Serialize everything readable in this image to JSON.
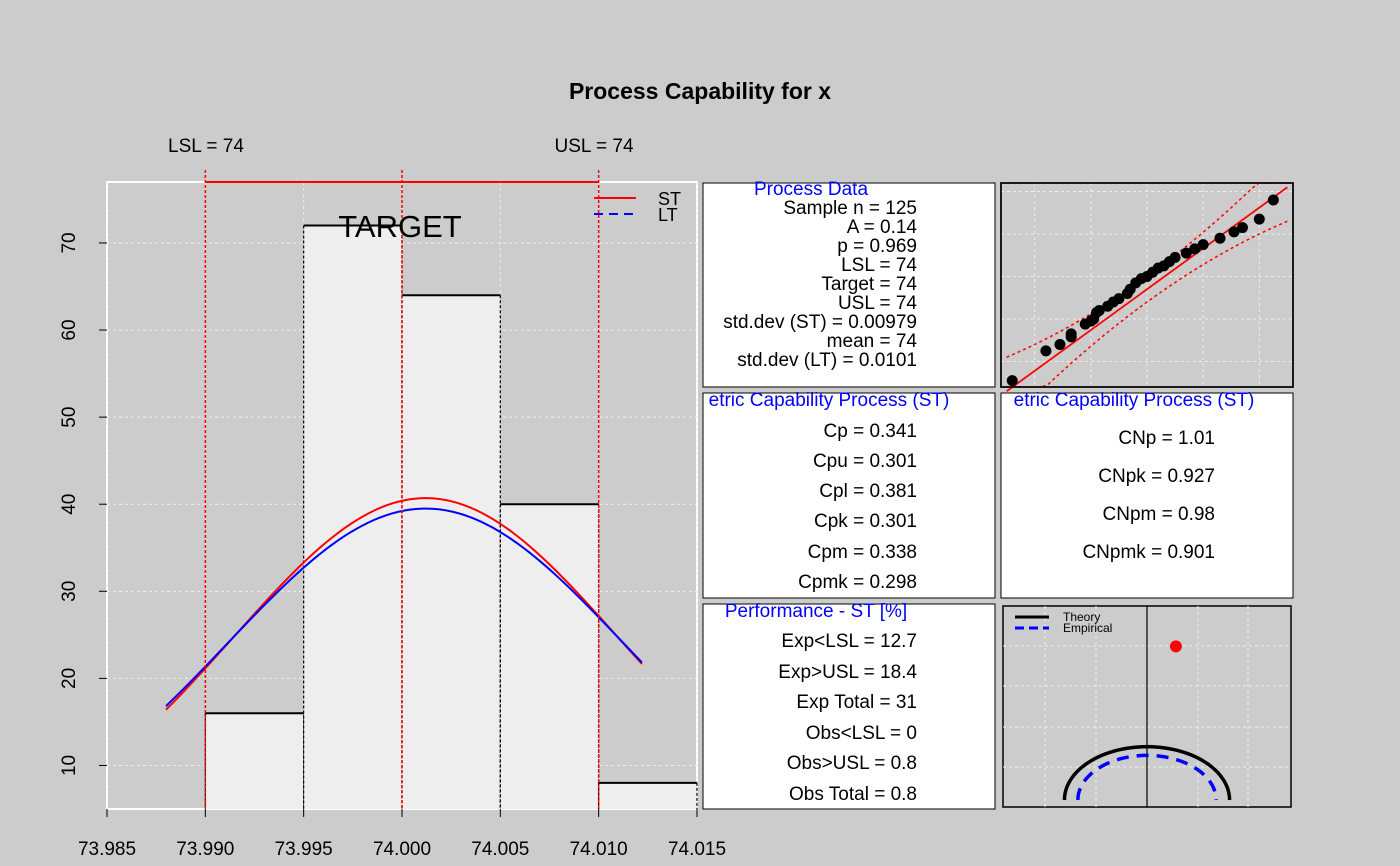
{
  "title": "Process Capability for x",
  "colors": {
    "background": "#cccccc",
    "panel": "#ffffff",
    "bar_fill": "#eeeeee",
    "grid": "#eeeeee",
    "spec": "#ff0000",
    "st_curve": "#ff0000",
    "lt_curve": "#0000ff",
    "heading": "#0000ff"
  },
  "histogram": {
    "lsl_label": "LSL = 74",
    "usl_label": "USL = 74",
    "target_label": "TARGET",
    "legend": {
      "st": "ST",
      "lt": "LT"
    }
  },
  "chart_data": [
    {
      "type": "bar",
      "title": "Process Capability for x",
      "xlim": [
        73.985,
        74.015
      ],
      "ylim": [
        5,
        77
      ],
      "x_ticks": [
        "73.985",
        "73.990",
        "73.995",
        "74.000",
        "74.005",
        "74.010",
        "74.015"
      ],
      "y_ticks": [
        "10",
        "20",
        "30",
        "40",
        "50",
        "60",
        "70"
      ],
      "bins": [
        {
          "from": 73.99,
          "to": 73.995,
          "count": 16
        },
        {
          "from": 73.995,
          "to": 74.0,
          "count": 72
        },
        {
          "from": 74.0,
          "to": 74.005,
          "count": 64
        },
        {
          "from": 74.005,
          "to": 74.01,
          "count": 40
        },
        {
          "from": 74.01,
          "to": 74.015,
          "count": 8
        }
      ],
      "spec_limits": {
        "lsl": 73.99,
        "target": 74.0,
        "usl": 74.01
      },
      "series": [
        {
          "name": "ST",
          "type": "line",
          "mean": 74.0012,
          "sd": 0.00979,
          "peak": 40.7,
          "x_range": [
            73.988,
            74.0122
          ]
        },
        {
          "name": "LT",
          "type": "line",
          "mean": 74.0012,
          "sd": 0.0101,
          "peak": 39.5,
          "x_range": [
            73.988,
            74.0122
          ]
        }
      ],
      "legend": "top-right",
      "grid": true
    },
    {
      "type": "scatter",
      "grid": true,
      "points": [
        [
          -2.4,
          -2.45
        ],
        [
          -1.8,
          -1.75
        ],
        [
          -1.55,
          -1.6
        ],
        [
          -1.35,
          -1.42
        ],
        [
          -1.35,
          -1.35
        ],
        [
          -1.1,
          -1.12
        ],
        [
          -1.0,
          -1.05
        ],
        [
          -0.95,
          -1.0
        ],
        [
          -0.9,
          -0.85
        ],
        [
          -0.85,
          -0.8
        ],
        [
          -0.7,
          -0.7
        ],
        [
          -0.6,
          -0.6
        ],
        [
          -0.5,
          -0.52
        ],
        [
          -0.35,
          -0.4
        ],
        [
          -0.3,
          -0.3
        ],
        [
          -0.2,
          -0.15
        ],
        [
          -0.1,
          -0.05
        ],
        [
          0.0,
          0.0
        ],
        [
          0.1,
          0.1
        ],
        [
          0.2,
          0.2
        ],
        [
          0.3,
          0.25
        ],
        [
          0.4,
          0.35
        ],
        [
          0.5,
          0.45
        ],
        [
          0.7,
          0.55
        ],
        [
          0.85,
          0.65
        ],
        [
          1.0,
          0.75
        ],
        [
          1.3,
          0.9
        ],
        [
          1.55,
          1.05
        ],
        [
          1.7,
          1.15
        ],
        [
          2.0,
          1.35
        ],
        [
          2.25,
          1.8
        ]
      ],
      "reference_line": [
        [
          -2.5,
          -2.7
        ],
        [
          2.5,
          2.1
        ]
      ]
    },
    {
      "type": "line",
      "legend": "top-left",
      "grid": true,
      "series": [
        {
          "name": "Theory",
          "kind": "semicircle",
          "radius": 0.86
        },
        {
          "name": "Empirical",
          "kind": "semicircle",
          "radius": 0.72,
          "dashed": true
        }
      ],
      "point": {
        "x": 0.17,
        "y": 0.64
      }
    }
  ],
  "process_data": {
    "heading": "Process Data",
    "lines": [
      "Sample n = 125",
      "A = 0.14",
      "p = 0.969",
      "LSL = 74",
      "Target = 74",
      "USL = 74",
      "std.dev (ST) = 0.00979",
      "mean = 74",
      "std.dev (LT) = 0.0101"
    ]
  },
  "capability": {
    "heading": "etric Capability Process (ST)",
    "lines": [
      "Cp = 0.341",
      "Cpu = 0.301",
      "Cpl = 0.381",
      "Cpk = 0.301",
      "Cpm = 0.338",
      "Cpmk = 0.298"
    ]
  },
  "nonparametric": {
    "heading": "etric Capability Process (ST)",
    "lines": [
      "CNp = 1.01",
      "CNpk = 0.927",
      "CNpm = 0.98",
      "CNpmk = 0.901"
    ]
  },
  "performance": {
    "heading": "Performance - ST [%]",
    "lines": [
      "Exp<LSL = 12.7",
      "Exp>USL = 18.4",
      "Exp Total = 31",
      "Obs<LSL = 0",
      "Obs>USL = 0.8",
      "Obs Total = 0.8"
    ]
  },
  "capability_plot": {
    "legend": {
      "theory": "Theory",
      "empirical": "Empirical"
    }
  }
}
